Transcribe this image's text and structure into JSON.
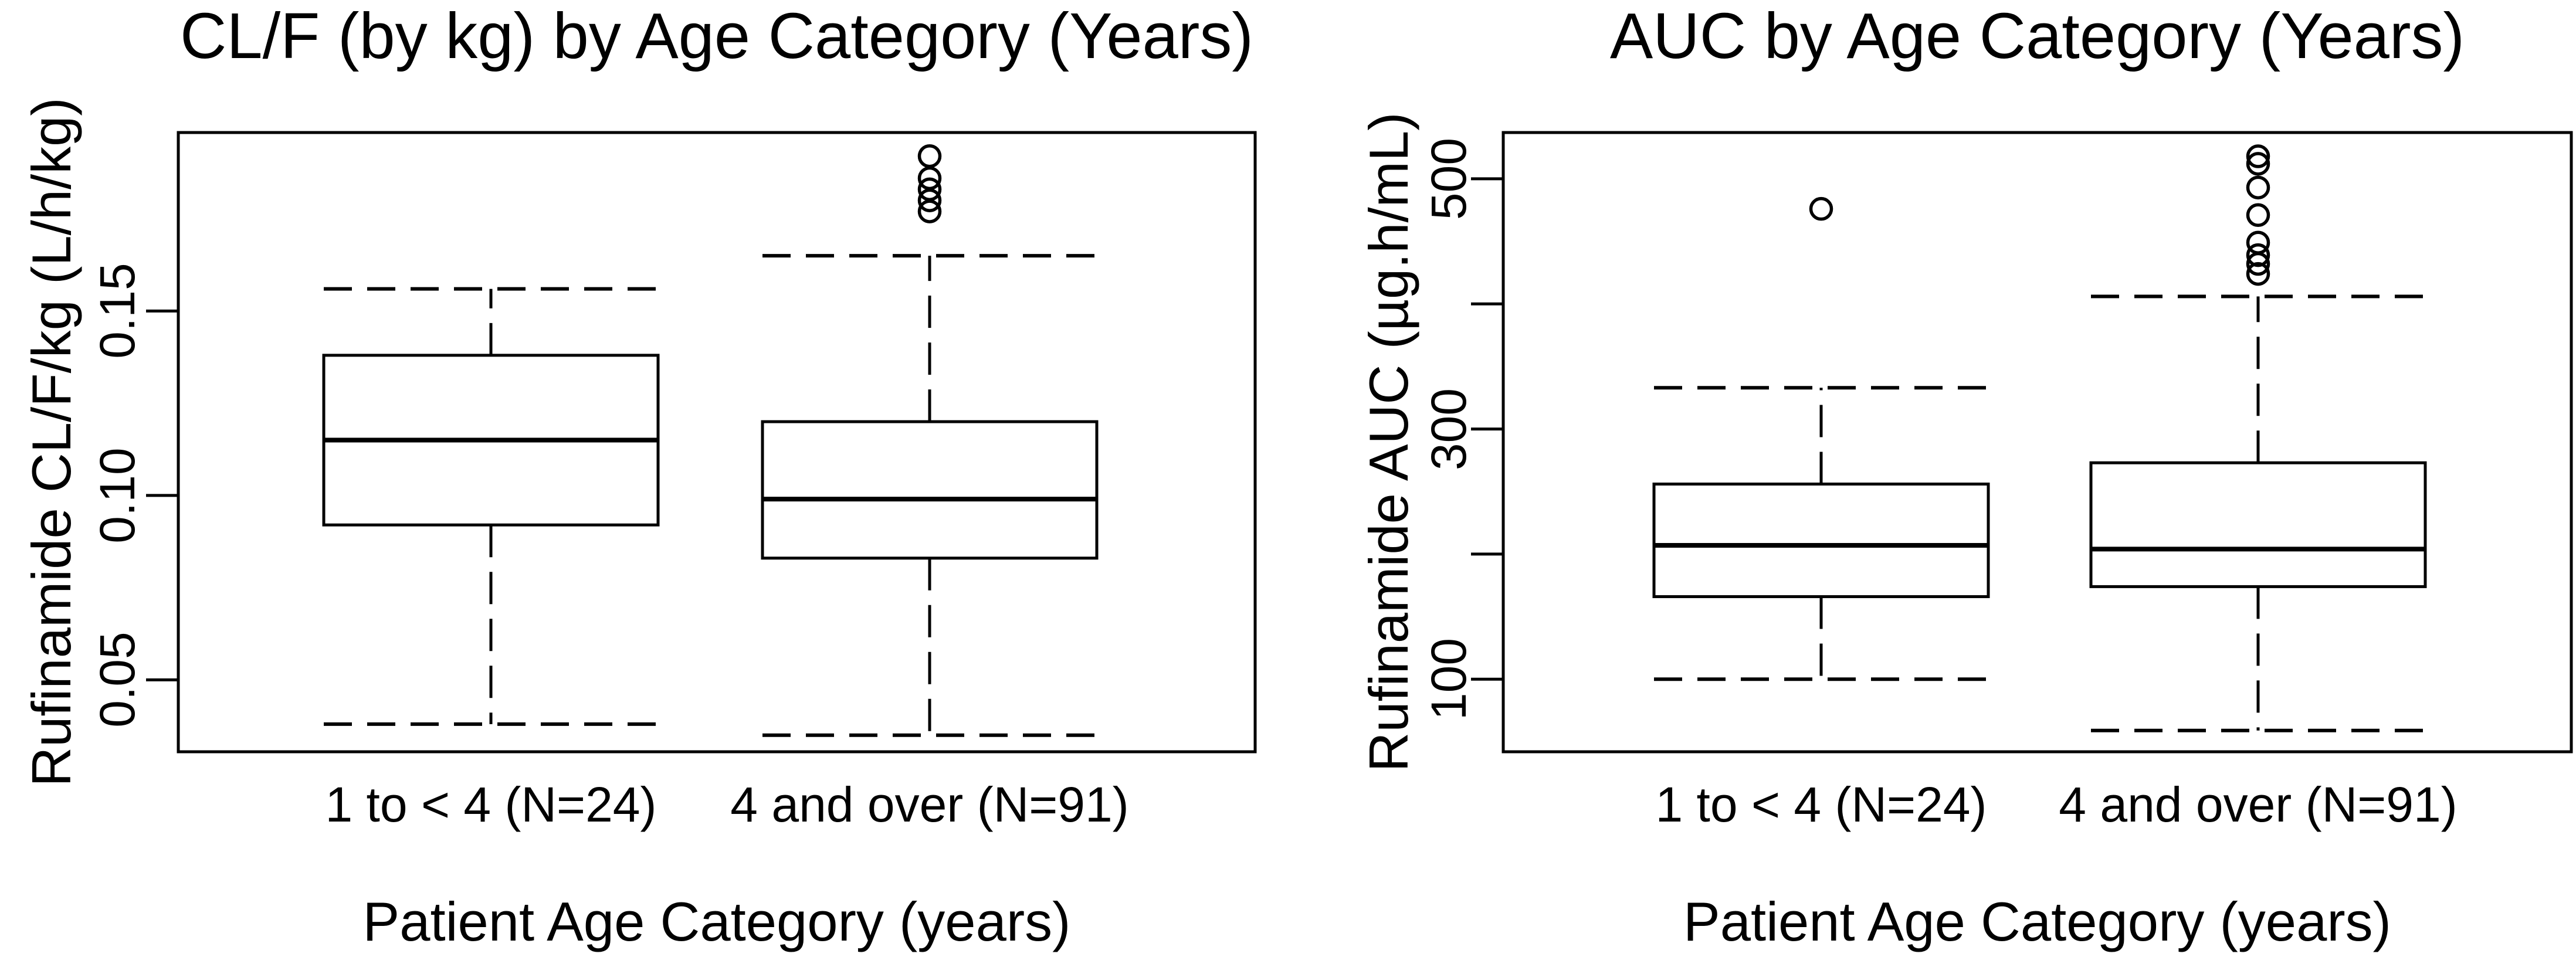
{
  "page": {
    "background": "#ffffff",
    "ink": "#000000"
  },
  "chart_data": [
    {
      "type": "box",
      "title": "CL/F (by kg) by Age Category (Years)",
      "xlabel": "Patient Age Category (years)",
      "ylabel": "Rufinamide CL/F/kg (L/h/kg)",
      "ylim": [
        0.0305,
        0.1984
      ],
      "grid": false,
      "legend": "none",
      "yticks": [
        {
          "value": 0.05,
          "label": "0.05"
        },
        {
          "value": 0.1,
          "label": "0.10"
        },
        {
          "value": 0.15,
          "label": "0.15"
        }
      ],
      "categories": [
        "1 to < 4 (N=24)",
        "4 and over (N=91)"
      ],
      "series": [
        {
          "name": "1 to < 4 (N=24)",
          "n": 24,
          "whisker_low": 0.038,
          "q1": 0.092,
          "median": 0.115,
          "q3": 0.138,
          "whisker_high": 0.156,
          "outliers": []
        },
        {
          "name": "4 and over (N=91)",
          "n": 91,
          "whisker_low": 0.035,
          "q1": 0.083,
          "median": 0.099,
          "q3": 0.12,
          "whisker_high": 0.165,
          "outliers": [
            0.177,
            0.18,
            0.183,
            0.186,
            0.192
          ]
        }
      ]
    },
    {
      "type": "box",
      "title": "AUC by Age Category (Years)",
      "xlabel": "Patient Age Category (years)",
      "ylabel": "Rufinamide AUC (µg.h/mL)",
      "ylim": [
        42,
        537
      ],
      "grid": false,
      "legend": "none",
      "yticks": [
        {
          "value": 100,
          "label": "100"
        },
        {
          "value": 200,
          "label": ""
        },
        {
          "value": 300,
          "label": "300"
        },
        {
          "value": 400,
          "label": ""
        },
        {
          "value": 500,
          "label": "500"
        }
      ],
      "categories": [
        "1 to < 4 (N=24)",
        "4 and over (N=91)"
      ],
      "series": [
        {
          "name": "1 to < 4 (N=24)",
          "n": 24,
          "whisker_low": 100,
          "q1": 166,
          "median": 207,
          "q3": 256,
          "whisker_high": 333,
          "outliers": [
            476
          ]
        },
        {
          "name": "4 and over (N=91)",
          "n": 91,
          "whisker_low": 59,
          "q1": 174,
          "median": 204,
          "q3": 273,
          "whisker_high": 406,
          "outliers": [
            424,
            432,
            439,
            449,
            471,
            493,
            512,
            518
          ]
        }
      ]
    }
  ]
}
